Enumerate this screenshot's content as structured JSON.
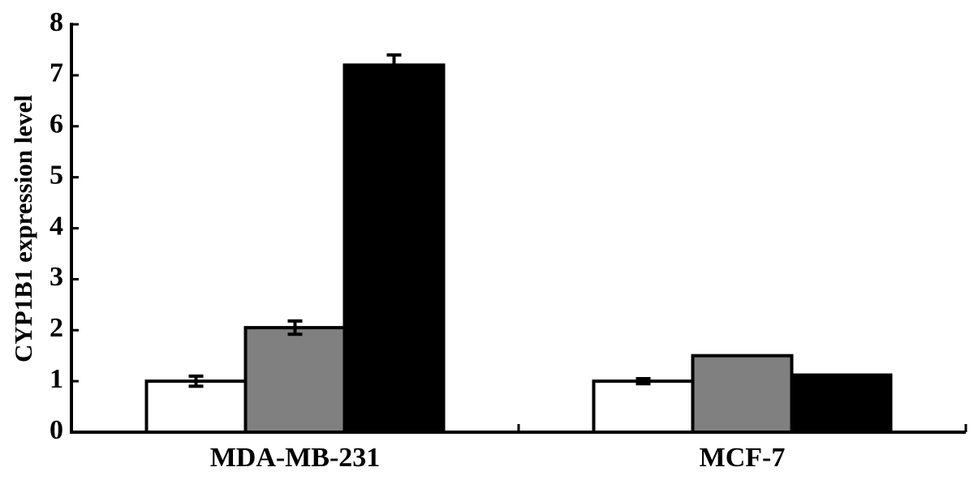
{
  "chart_data": {
    "type": "bar",
    "ylabel": "CYP1B1 expression level",
    "categories": [
      "MDA-MB-231",
      "MCF-7"
    ],
    "series": [
      {
        "color": "#ffffff",
        "values": [
          1.0,
          1.0
        ],
        "errors": [
          0.1,
          0.05
        ]
      },
      {
        "color": "#808080",
        "values": [
          2.05,
          1.5
        ],
        "errors": [
          0.13,
          null
        ]
      },
      {
        "color": "#000000",
        "values": [
          7.2,
          1.12
        ],
        "errors": [
          0.2,
          null
        ]
      }
    ],
    "ylim": [
      0,
      8
    ],
    "yticks": [
      0,
      1,
      2,
      3,
      4,
      5,
      6,
      7,
      8
    ]
  }
}
